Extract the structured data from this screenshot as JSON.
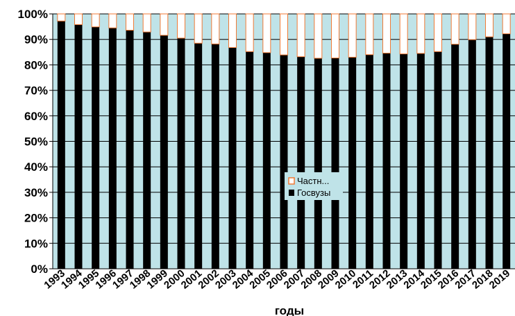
{
  "chart_data": {
    "type": "bar",
    "stacked_percent": true,
    "xlabel": "годы",
    "categories": [
      "1993",
      "1994",
      "1995",
      "1996",
      "1997",
      "1998",
      "1999",
      "2000",
      "2001",
      "2002",
      "2003",
      "2004",
      "2005",
      "2006",
      "2007",
      "2008",
      "2009",
      "2010",
      "2011",
      "2012",
      "2013",
      "2014",
      "2015",
      "2016",
      "2017",
      "2018",
      "2019"
    ],
    "series": [
      {
        "name": "Госвузы",
        "color": "#000000",
        "values": [
          97.2,
          95.8,
          94.9,
          94.5,
          93.6,
          92.9,
          91.6,
          90.5,
          88.5,
          88.2,
          86.8,
          85.2,
          84.8,
          83.9,
          83.2,
          82.6,
          82.7,
          83.0,
          84.0,
          84.6,
          84.3,
          84.5,
          85.2,
          88.1,
          89.9,
          91.0,
          92.2
        ]
      },
      {
        "name": "Частн...",
        "color": "#f07a35",
        "values": [
          2.8,
          4.2,
          5.1,
          5.5,
          6.4,
          7.1,
          8.4,
          9.5,
          11.5,
          11.8,
          13.2,
          14.8,
          15.2,
          16.1,
          16.8,
          17.4,
          17.3,
          17.0,
          16.0,
          15.4,
          15.7,
          15.5,
          14.8,
          11.9,
          10.1,
          9.0,
          7.8
        ]
      }
    ],
    "ylim": [
      0,
      100
    ],
    "yticks": [
      "0%",
      "10%",
      "20%",
      "30%",
      "40%",
      "50%",
      "60%",
      "70%",
      "80%",
      "90%",
      "100%"
    ],
    "grid": true,
    "plot_background": "#bfe3e8",
    "legend": {
      "placement": "center",
      "entries": [
        "Частн...",
        "Госвузы"
      ]
    }
  }
}
